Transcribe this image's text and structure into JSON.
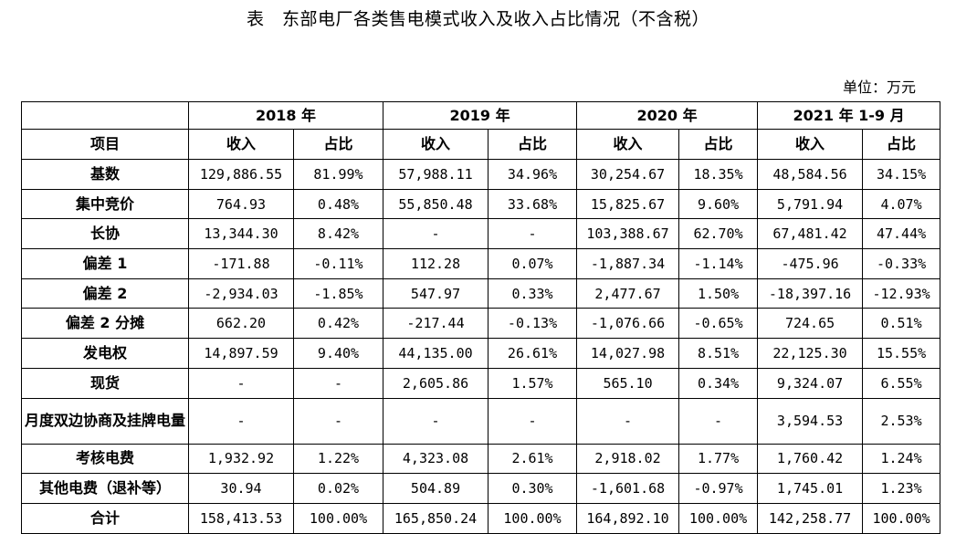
{
  "title": "表　东部电厂各类售电模式收入及收入占比情况（不含税）",
  "unit": "单位：万元",
  "table": {
    "years": [
      "2018 年",
      "2019 年",
      "2020 年",
      "2021 年 1-9 月"
    ],
    "item_header": "项目",
    "income_header": "收入",
    "share_header": "占比",
    "rows": [
      {
        "label": "基数",
        "cells": [
          "129,886.55",
          "81.99%",
          "57,988.11",
          "34.96%",
          "30,254.67",
          "18.35%",
          "48,584.56",
          "34.15%"
        ]
      },
      {
        "label": "集中竞价",
        "cells": [
          "764.93",
          "0.48%",
          "55,850.48",
          "33.68%",
          "15,825.67",
          "9.60%",
          "5,791.94",
          "4.07%"
        ]
      },
      {
        "label": "长协",
        "cells": [
          "13,344.30",
          "8.42%",
          "-",
          "-",
          "103,388.67",
          "62.70%",
          "67,481.42",
          "47.44%"
        ]
      },
      {
        "label": "偏差 1",
        "cells": [
          "-171.88",
          "-0.11%",
          "112.28",
          "0.07%",
          "-1,887.34",
          "-1.14%",
          "-475.96",
          "-0.33%"
        ]
      },
      {
        "label": "偏差 2",
        "cells": [
          "-2,934.03",
          "-1.85%",
          "547.97",
          "0.33%",
          "2,477.67",
          "1.50%",
          "-18,397.16",
          "-12.93%"
        ]
      },
      {
        "label": "偏差 2 分摊",
        "cells": [
          "662.20",
          "0.42%",
          "-217.44",
          "-0.13%",
          "-1,076.66",
          "-0.65%",
          "724.65",
          "0.51%"
        ]
      },
      {
        "label": "发电权",
        "cells": [
          "14,897.59",
          "9.40%",
          "44,135.00",
          "26.61%",
          "14,027.98",
          "8.51%",
          "22,125.30",
          "15.55%"
        ]
      },
      {
        "label": "现货",
        "cells": [
          "-",
          "-",
          "2,605.86",
          "1.57%",
          "565.10",
          "0.34%",
          "9,324.07",
          "6.55%"
        ]
      },
      {
        "label": "月度双边协商及挂牌电量",
        "cells": [
          "-",
          "-",
          "-",
          "-",
          "-",
          "-",
          "3,594.53",
          "2.53%"
        ]
      },
      {
        "label": "考核电费",
        "cells": [
          "1,932.92",
          "1.22%",
          "4,323.08",
          "2.61%",
          "2,918.02",
          "1.77%",
          "1,760.42",
          "1.24%"
        ]
      },
      {
        "label": "其他电费（退补等）",
        "cells": [
          "30.94",
          "0.02%",
          "504.89",
          "0.30%",
          "-1,601.68",
          "-0.97%",
          "1,745.01",
          "1.23%"
        ]
      },
      {
        "label": "合计",
        "cells": [
          "158,413.53",
          "100.00%",
          "165,850.24",
          "100.00%",
          "164,892.10",
          "100.00%",
          "142,258.77",
          "100.00%"
        ]
      }
    ]
  }
}
